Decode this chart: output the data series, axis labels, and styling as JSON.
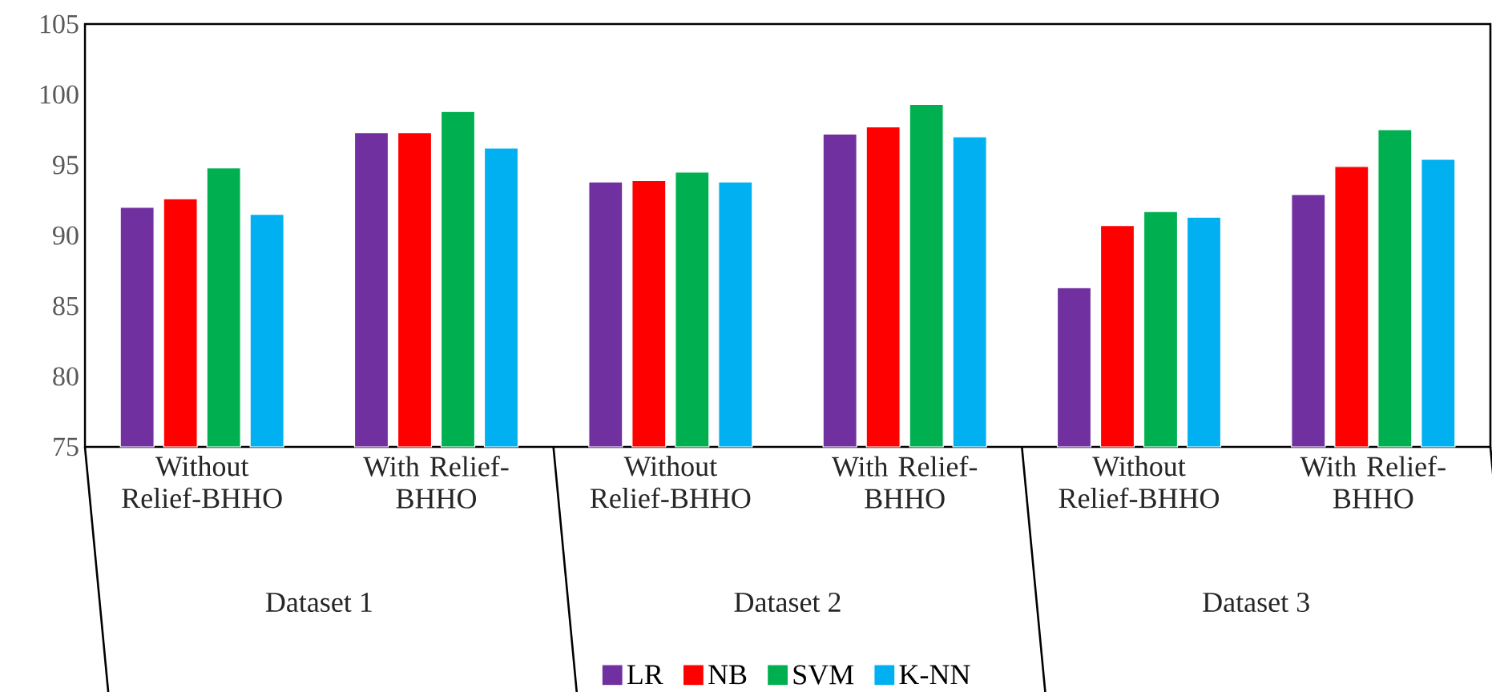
{
  "chart_data": {
    "type": "bar",
    "categories": [
      "Without Relief-BHHO",
      "With Relief-BHHO",
      "Without Relief-BHHO",
      "With Relief-BHHO",
      "Without Relief-BHHO",
      "With Relief-BHHO"
    ],
    "series": [
      {
        "name": "LR",
        "color": "#7030a0",
        "values": [
          92.0,
          97.3,
          93.8,
          97.2,
          86.3,
          92.9
        ]
      },
      {
        "name": "NB",
        "color": "#ff0000",
        "values": [
          92.6,
          97.3,
          93.9,
          97.7,
          90.7,
          94.9
        ]
      },
      {
        "name": "SVM",
        "color": "#00b050",
        "values": [
          94.8,
          98.8,
          94.5,
          99.3,
          91.7,
          97.5
        ]
      },
      {
        "name": "K-NN",
        "color": "#00b0f0",
        "values": [
          91.5,
          96.2,
          93.8,
          97.0,
          91.3,
          95.4
        ]
      }
    ],
    "annotations": [
      "Dataset 1",
      "Dataset 2",
      "Dataset 3"
    ],
    "ylim": [
      75,
      105
    ],
    "yticks": [
      75,
      80,
      85,
      90,
      95,
      100,
      105
    ],
    "legend": "bottom",
    "grid": false
  }
}
